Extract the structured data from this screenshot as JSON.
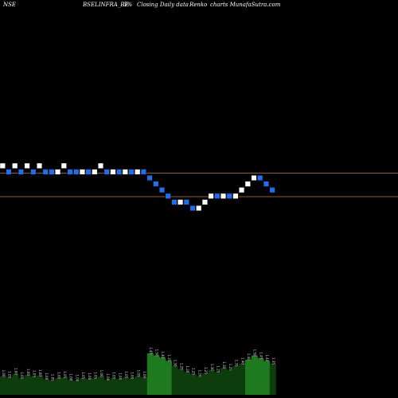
{
  "header": {
    "exchange": "NSE",
    "symbol": "BSELINFRA_BE",
    "box_pct": "3%",
    "description": "Closing Daily data",
    "chart_kind": "Renko",
    "site": "charts MunafaSutra.com"
  },
  "colors": {
    "background": "#000000",
    "up_brick": "#ffffff",
    "down_brick": "#1e6ff0",
    "brick_border": "#000000",
    "line_upper": "#b06a1c",
    "line_lower": "#b06a1c",
    "volume_fill": "#0d3d0d",
    "volume_peak": "#1e7a1e"
  },
  "chart_data": {
    "type": "renko",
    "bricks": [
      {
        "d": "u",
        "l": 0
      },
      {
        "d": "d",
        "l": -1
      },
      {
        "d": "u",
        "l": 0
      },
      {
        "d": "d",
        "l": -1
      },
      {
        "d": "u",
        "l": 0
      },
      {
        "d": "d",
        "l": -1
      },
      {
        "d": "u",
        "l": 0
      },
      {
        "d": "d",
        "l": -1
      },
      {
        "d": "d",
        "l": -1
      },
      {
        "d": "u",
        "l": -1
      },
      {
        "d": "u",
        "l": 0
      },
      {
        "d": "d",
        "l": -1
      },
      {
        "d": "d",
        "l": -1
      },
      {
        "d": "u",
        "l": -1
      },
      {
        "d": "d",
        "l": -1
      },
      {
        "d": "u",
        "l": -1
      },
      {
        "d": "u",
        "l": 0
      },
      {
        "d": "d",
        "l": -1
      },
      {
        "d": "u",
        "l": -1
      },
      {
        "d": "d",
        "l": -1
      },
      {
        "d": "u",
        "l": -1
      },
      {
        "d": "d",
        "l": -1
      },
      {
        "d": "u",
        "l": -1
      },
      {
        "d": "d",
        "l": -1
      },
      {
        "d": "d",
        "l": -2
      },
      {
        "d": "d",
        "l": -3
      },
      {
        "d": "d",
        "l": -4
      },
      {
        "d": "d",
        "l": -5
      },
      {
        "d": "d",
        "l": -6
      },
      {
        "d": "u",
        "l": -6
      },
      {
        "d": "d",
        "l": -6
      },
      {
        "d": "d",
        "l": -7
      },
      {
        "d": "u",
        "l": -7
      },
      {
        "d": "u",
        "l": -6
      },
      {
        "d": "u",
        "l": -5
      },
      {
        "d": "d",
        "l": -5
      },
      {
        "d": "u",
        "l": -5
      },
      {
        "d": "d",
        "l": -5
      },
      {
        "d": "u",
        "l": -5
      },
      {
        "d": "u",
        "l": -4
      },
      {
        "d": "u",
        "l": -3
      },
      {
        "d": "u",
        "l": -2
      },
      {
        "d": "d",
        "l": -2
      },
      {
        "d": "d",
        "l": -3
      },
      {
        "d": "d",
        "l": -4
      }
    ],
    "levels": [
      {
        "name": "upper",
        "brick_level": -1.2
      },
      {
        "name": "lower",
        "brick_level": -5.1
      }
    ],
    "volume": [
      {
        "v": 0.45,
        "label": "1.00"
      },
      {
        "v": 0.42,
        "label": "1.05"
      },
      {
        "v": 0.5,
        "label": "1.00"
      },
      {
        "v": 0.4,
        "label": "1.05"
      },
      {
        "v": 0.48,
        "label": "1.00"
      },
      {
        "v": 0.44,
        "label": "1.05"
      },
      {
        "v": 0.46,
        "label": "1.00"
      },
      {
        "v": 0.38,
        "label": "1.00"
      },
      {
        "v": 0.35,
        "label": "1.05"
      },
      {
        "v": 0.4,
        "label": "1.00"
      },
      {
        "v": 0.42,
        "label": "1.05"
      },
      {
        "v": 0.36,
        "label": "1.00"
      },
      {
        "v": 0.34,
        "label": "1.00"
      },
      {
        "v": 0.4,
        "label": "1.05"
      },
      {
        "v": 0.38,
        "label": "1.00"
      },
      {
        "v": 0.4,
        "label": "1.05"
      },
      {
        "v": 0.45,
        "label": "1.00"
      },
      {
        "v": 0.36,
        "label": "1.00"
      },
      {
        "v": 0.4,
        "label": "1.05"
      },
      {
        "v": 0.38,
        "label": "1.00"
      },
      {
        "v": 0.42,
        "label": "1.05"
      },
      {
        "v": 0.4,
        "label": "1.00"
      },
      {
        "v": 0.45,
        "label": "1.05"
      },
      {
        "v": 0.42,
        "label": "1.00"
      },
      {
        "v": 1.0,
        "label": "1.45"
      },
      {
        "v": 0.95,
        "label": "1.50"
      },
      {
        "v": 0.9,
        "label": "1.40"
      },
      {
        "v": 0.82,
        "label": "1.35"
      },
      {
        "v": 0.7,
        "label": "1.30"
      },
      {
        "v": 0.62,
        "label": "1.25"
      },
      {
        "v": 0.55,
        "label": "1.20"
      },
      {
        "v": 0.5,
        "label": "1.25"
      },
      {
        "v": 0.45,
        "label": "1.20"
      },
      {
        "v": 0.52,
        "label": "1.25"
      },
      {
        "v": 0.6,
        "label": "1.30"
      },
      {
        "v": 0.55,
        "label": "1.25"
      },
      {
        "v": 0.65,
        "label": "1.30"
      },
      {
        "v": 0.6,
        "label": "1.25"
      },
      {
        "v": 0.7,
        "label": "1.35"
      },
      {
        "v": 0.75,
        "label": "1.40"
      },
      {
        "v": 0.85,
        "label": "1.40"
      },
      {
        "v": 0.95,
        "label": "1.50"
      },
      {
        "v": 0.88,
        "label": "1.45"
      },
      {
        "v": 0.82,
        "label": "1.40"
      },
      {
        "v": 0.75,
        "label": "1.35"
      }
    ]
  }
}
